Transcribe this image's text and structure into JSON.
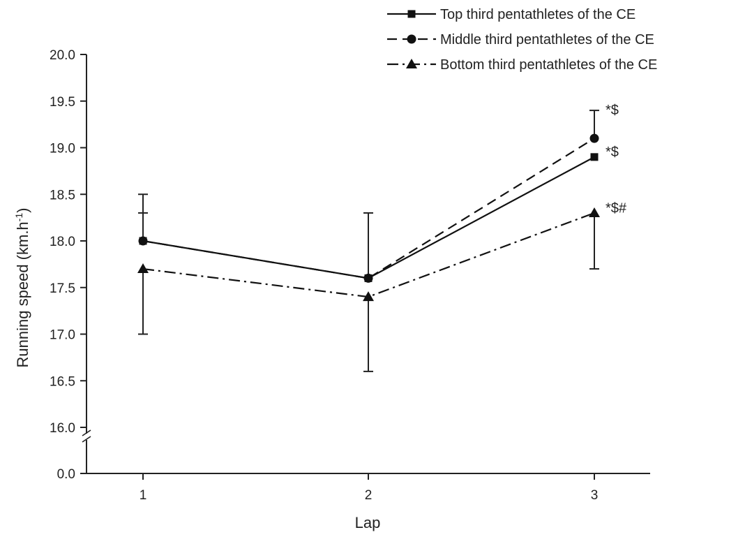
{
  "chart_data": {
    "type": "line",
    "xlabel": "Lap",
    "ylabel": "Running speed (km.h",
    "ylabel_sup": "-1",
    "ylabel_end": ")",
    "categories": [
      "1",
      "2",
      "3"
    ],
    "y_ticks": [
      "0.0",
      "16.0",
      "16.5",
      "17.0",
      "17.5",
      "18.0",
      "18.5",
      "19.0",
      "19.5",
      "20.0"
    ],
    "y_break": {
      "from": 0.0,
      "to": 16.0
    },
    "ylim": [
      16.0,
      20.0
    ],
    "grid": false,
    "legend_position": "top-right",
    "series": [
      {
        "name": "Top third pentathletes of the CE",
        "marker": "square",
        "line_style": "solid",
        "values": [
          18.0,
          17.6,
          18.9
        ],
        "error_upper": [
          18.5,
          18.3,
          null
        ],
        "error_lower": [
          null,
          null,
          null
        ]
      },
      {
        "name": "Middle third pentathletes of the CE",
        "marker": "circle",
        "line_style": "dashed",
        "values": [
          18.0,
          17.6,
          19.1
        ],
        "error_upper": [
          18.3,
          null,
          19.4
        ],
        "error_lower": [
          null,
          null,
          null
        ]
      },
      {
        "name": "Bottom third pentathletes of the CE",
        "marker": "triangle",
        "line_style": "dash-dot",
        "values": [
          17.7,
          17.4,
          18.3
        ],
        "error_upper": [
          null,
          null,
          null
        ],
        "error_lower": [
          17.0,
          16.6,
          17.7
        ]
      }
    ],
    "annotations": [
      {
        "text": "*$",
        "category": "3",
        "y": 19.4
      },
      {
        "text": "*$",
        "category": "3",
        "y": 18.95
      },
      {
        "text": "*$#",
        "category": "3",
        "y": 18.35
      }
    ]
  }
}
